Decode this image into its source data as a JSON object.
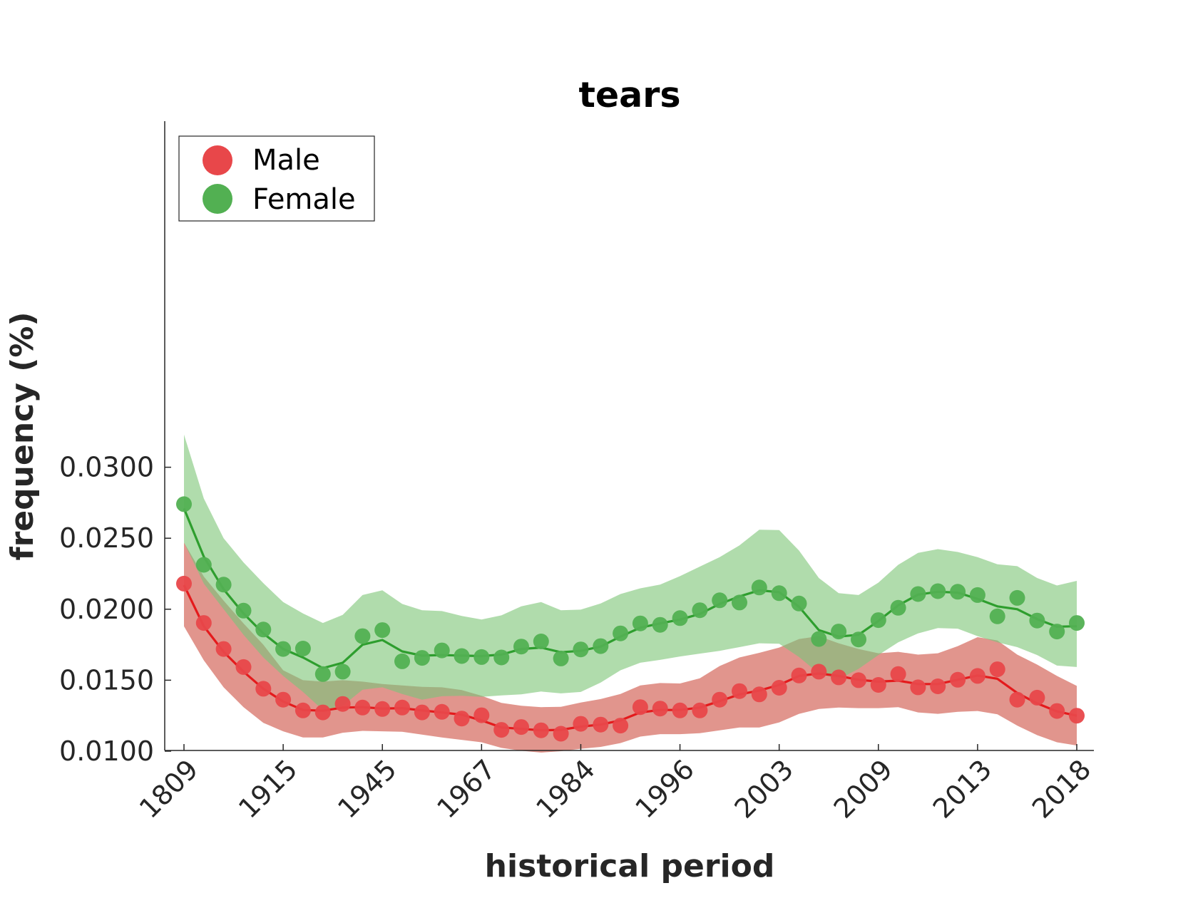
{
  "chart_data": {
    "type": "line",
    "title": "tears",
    "xlabel": "historical period",
    "ylabel": "frequency (%)",
    "x_tick_labels": [
      "1809",
      "1915",
      "1945",
      "1967",
      "1984",
      "1996",
      "2003",
      "2009",
      "2013",
      "2018"
    ],
    "y_ticks": [
      "0.0100",
      "0.0150",
      "0.0200",
      "0.0250",
      "0.0300"
    ],
    "ylim": [
      0.01,
      0.0323
    ],
    "grid": false,
    "legend_position": "top-left",
    "series": [
      {
        "name": "Male",
        "color": "#e41a1c",
        "marker_color": "#e8474a",
        "band_color": "#f08a8b",
        "points": [
          0.0218,
          0.01903,
          0.0172,
          0.01593,
          0.0144,
          0.01363,
          0.01287,
          0.01273,
          0.01333,
          0.01307,
          0.01297,
          0.01307,
          0.01273,
          0.01277,
          0.0123,
          0.01253,
          0.0115,
          0.0117,
          0.01147,
          0.01123,
          0.01193,
          0.01187,
          0.0118,
          0.0131,
          0.013,
          0.01287,
          0.01287,
          0.01363,
          0.01423,
          0.014,
          0.01447,
          0.01533,
          0.0156,
          0.0152,
          0.015,
          0.01467,
          0.01543,
          0.0145,
          0.01457,
          0.01503,
          0.0153,
          0.01577,
          0.01363,
          0.01377,
          0.01283,
          0.0125
        ],
        "line": [
          0.0217,
          0.0188,
          0.017,
          0.0156,
          0.0144,
          0.0135,
          0.0129,
          0.01285,
          0.01307,
          0.0131,
          0.013,
          0.01303,
          0.01287,
          0.01273,
          0.01257,
          0.01217,
          0.01167,
          0.01157,
          0.01147,
          0.0115,
          0.01173,
          0.01187,
          0.01217,
          0.01273,
          0.0129,
          0.0129,
          0.01307,
          0.01353,
          0.014,
          0.01427,
          0.01467,
          0.0153,
          0.01547,
          0.0153,
          0.01503,
          0.0149,
          0.01497,
          0.01473,
          0.01473,
          0.01503,
          0.01533,
          0.0151,
          0.0141,
          0.01337,
          0.0128,
          0.0125
        ],
        "band_upper": [
          0.0247,
          0.0223,
          0.0206,
          0.019,
          0.0175,
          0.0157,
          0.015,
          0.0149,
          0.015,
          0.0149,
          0.01473,
          0.01463,
          0.01453,
          0.0145,
          0.0143,
          0.0139,
          0.0134,
          0.0132,
          0.0131,
          0.01313,
          0.01343,
          0.01367,
          0.01403,
          0.01463,
          0.0148,
          0.01477,
          0.01513,
          0.016,
          0.0166,
          0.01693,
          0.0173,
          0.0179,
          0.0181,
          0.0176,
          0.0172,
          0.0169,
          0.017,
          0.0168,
          0.0169,
          0.0174,
          0.01803,
          0.0178,
          0.0168,
          0.0161,
          0.0153,
          0.0146
        ],
        "band_lower": [
          0.0188,
          0.0164,
          0.0145,
          0.0131,
          0.012,
          0.0114,
          0.01097,
          0.01097,
          0.0113,
          0.01143,
          0.0114,
          0.01137,
          0.01117,
          0.01097,
          0.0108,
          0.01063,
          0.01023,
          0.01003,
          0.0099,
          0.01,
          0.01017,
          0.0103,
          0.01057,
          0.01103,
          0.0112,
          0.0112,
          0.01127,
          0.01147,
          0.01167,
          0.01167,
          0.01203,
          0.01263,
          0.01297,
          0.01307,
          0.01303,
          0.01303,
          0.0131,
          0.01273,
          0.01263,
          0.01277,
          0.01283,
          0.0126,
          0.0118,
          0.01113,
          0.01063,
          0.0104
        ]
      },
      {
        "name": "Female",
        "color": "#2e9e2e",
        "marker_color": "#52b052",
        "band_color": "#9fd49a",
        "points": [
          0.0274,
          0.02313,
          0.02173,
          0.0199,
          0.01857,
          0.0172,
          0.01723,
          0.01543,
          0.0156,
          0.0181,
          0.01853,
          0.01633,
          0.01657,
          0.0171,
          0.0167,
          0.01663,
          0.0166,
          0.01737,
          0.01773,
          0.01653,
          0.01717,
          0.0174,
          0.0183,
          0.019,
          0.0189,
          0.01937,
          0.01993,
          0.02063,
          0.02047,
          0.02153,
          0.02113,
          0.0204,
          0.0179,
          0.01843,
          0.01787,
          0.01923,
          0.0201,
          0.02107,
          0.02127,
          0.02123,
          0.021,
          0.0195,
          0.0208,
          0.0192,
          0.01843,
          0.01903
        ],
        "line": [
          0.0271,
          0.0237,
          0.0214,
          0.0197,
          0.0183,
          0.0172,
          0.0166,
          0.01585,
          0.01623,
          0.0175,
          0.01783,
          0.01703,
          0.01673,
          0.01677,
          0.01673,
          0.0167,
          0.0168,
          0.0172,
          0.0173,
          0.01697,
          0.01707,
          0.01737,
          0.01807,
          0.0187,
          0.019,
          0.01927,
          0.01967,
          0.02037,
          0.0209,
          0.02133,
          0.0212,
          0.02017,
          0.01853,
          0.01807,
          0.0182,
          0.01917,
          0.02027,
          0.02103,
          0.02123,
          0.02117,
          0.02073,
          0.0202,
          0.02,
          0.0193,
          0.01877,
          0.0188
        ],
        "band_upper": [
          0.0323,
          0.0278,
          0.025,
          0.0233,
          0.02183,
          0.0205,
          0.0197,
          0.01903,
          0.0196,
          0.021,
          0.02133,
          0.02037,
          0.01993,
          0.01987,
          0.01953,
          0.01927,
          0.01957,
          0.0202,
          0.0205,
          0.01993,
          0.01997,
          0.0204,
          0.02107,
          0.02147,
          0.02173,
          0.02233,
          0.023,
          0.02367,
          0.0245,
          0.0256,
          0.02557,
          0.02413,
          0.0222,
          0.02113,
          0.021,
          0.02187,
          0.02313,
          0.02397,
          0.02423,
          0.02403,
          0.02367,
          0.02317,
          0.02303,
          0.0222,
          0.02167,
          0.022
        ],
        "band_lower": [
          0.0247,
          0.0218,
          0.02,
          0.0182,
          0.0166,
          0.0153,
          0.01417,
          0.0129,
          0.0132,
          0.01433,
          0.0145,
          0.01403,
          0.01363,
          0.01387,
          0.0139,
          0.01383,
          0.01393,
          0.014,
          0.0142,
          0.01407,
          0.01417,
          0.01483,
          0.0157,
          0.01623,
          0.01643,
          0.01667,
          0.01687,
          0.01707,
          0.01733,
          0.0176,
          0.01757,
          0.01663,
          0.01547,
          0.01507,
          0.0158,
          0.01677,
          0.01767,
          0.0183,
          0.01867,
          0.01863,
          0.0181,
          0.01767,
          0.01733,
          0.01677,
          0.01603,
          0.01593
        ]
      }
    ]
  }
}
